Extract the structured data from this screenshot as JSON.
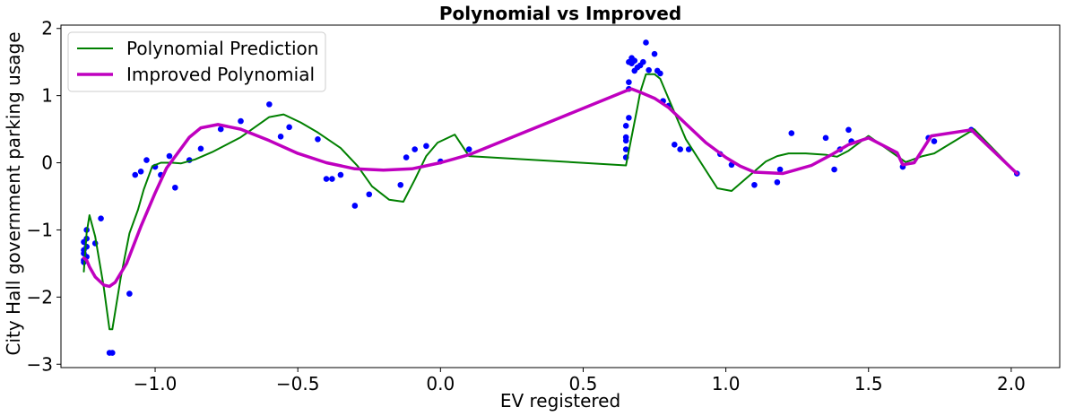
{
  "chart_data": {
    "type": "line",
    "title": "Polynomial vs Improved",
    "xlabel": "EV registered",
    "ylabel": "City Hall government parking usage",
    "xlim": [
      -1.33,
      2.17
    ],
    "ylim": [
      -3.05,
      2.05
    ],
    "xticks": [
      -1.0,
      -0.5,
      0.0,
      0.5,
      1.0,
      1.5,
      2.0
    ],
    "xtick_labels": [
      "−1.0",
      "−0.5",
      "0.0",
      "0.5",
      "1.0",
      "1.5",
      "2.0"
    ],
    "yticks": [
      -3,
      -2,
      -1,
      0,
      1,
      2
    ],
    "ytick_labels": [
      "−3",
      "−2",
      "−1",
      "0",
      "1",
      "2"
    ],
    "grid": false,
    "legend_position": "top-left",
    "colors": {
      "poly": "#008000",
      "improved": "#bf00bf",
      "points": "#0000ff"
    },
    "legend": [
      {
        "label": "Polynomial Prediction",
        "color": "#008000",
        "width": 2
      },
      {
        "label": "Improved Polynomial",
        "color": "#bf00bf",
        "width": 3.5
      }
    ],
    "scatter": {
      "x": [
        -1.25,
        -1.25,
        -1.25,
        -1.25,
        -1.25,
        -1.24,
        -1.24,
        -1.24,
        -1.24,
        -1.21,
        -1.19,
        -1.16,
        -1.15,
        -1.09,
        -1.07,
        -1.05,
        -1.03,
        -1.0,
        -0.98,
        -0.95,
        -0.93,
        -0.88,
        -0.84,
        -0.77,
        -0.7,
        -0.6,
        -0.56,
        -0.53,
        -0.43,
        -0.4,
        -0.38,
        -0.35,
        -0.3,
        -0.25,
        -0.14,
        -0.12,
        -0.09,
        -0.05,
        0.0,
        0.1,
        0.65,
        0.65,
        0.65,
        0.65,
        0.65,
        0.66,
        0.66,
        0.66,
        0.66,
        0.67,
        0.67,
        0.68,
        0.68,
        0.69,
        0.7,
        0.71,
        0.72,
        0.73,
        0.75,
        0.76,
        0.77,
        0.78,
        0.8,
        0.82,
        0.84,
        0.87,
        0.98,
        1.02,
        1.1,
        1.18,
        1.19,
        1.23,
        1.35,
        1.38,
        1.4,
        1.43,
        1.44,
        1.62,
        1.71,
        1.73,
        1.86,
        2.02
      ],
      "y": [
        -1.3,
        -1.35,
        -1.45,
        -1.48,
        -1.18,
        -1.13,
        -1.25,
        -1.0,
        -1.4,
        -1.2,
        -0.83,
        -2.83,
        -2.83,
        -1.95,
        -0.18,
        -0.13,
        0.04,
        -0.06,
        -0.18,
        0.1,
        -0.37,
        0.04,
        0.21,
        0.5,
        0.62,
        0.87,
        0.39,
        0.53,
        0.35,
        -0.24,
        -0.24,
        -0.18,
        -0.64,
        -0.47,
        -0.33,
        0.08,
        0.2,
        0.25,
        0.02,
        0.2,
        0.08,
        0.2,
        0.33,
        0.38,
        0.55,
        0.67,
        1.1,
        1.2,
        1.5,
        1.56,
        1.48,
        1.52,
        1.37,
        1.42,
        1.45,
        1.5,
        1.79,
        1.38,
        1.62,
        1.37,
        1.33,
        0.92,
        0.85,
        0.27,
        0.2,
        0.2,
        0.13,
        -0.03,
        -0.33,
        -0.29,
        -0.1,
        0.44,
        0.37,
        -0.1,
        0.2,
        0.49,
        0.32,
        -0.06,
        0.37,
        0.32,
        0.49,
        -0.16
      ]
    },
    "series": [
      {
        "name": "Polynomial Prediction",
        "x": [
          -1.25,
          -1.24,
          -1.23,
          -1.21,
          -1.18,
          -1.16,
          -1.15,
          -1.12,
          -1.09,
          -1.06,
          -1.04,
          -1.01,
          -0.98,
          -0.94,
          -0.91,
          -0.86,
          -0.8,
          -0.7,
          -0.6,
          -0.55,
          -0.49,
          -0.43,
          -0.35,
          -0.29,
          -0.24,
          -0.18,
          -0.13,
          -0.09,
          -0.05,
          -0.01,
          0.05,
          0.1,
          0.65,
          0.69,
          0.7,
          0.72,
          0.75,
          0.77,
          0.8,
          0.86,
          0.97,
          1.02,
          1.08,
          1.14,
          1.18,
          1.22,
          1.28,
          1.35,
          1.39,
          1.43,
          1.5,
          1.6,
          1.63,
          1.69,
          1.73,
          1.87,
          2.02
        ],
        "y": [
          -1.62,
          -1.05,
          -0.78,
          -1.1,
          -1.85,
          -2.48,
          -2.48,
          -1.7,
          -1.05,
          -0.7,
          -0.4,
          -0.05,
          0.0,
          0.0,
          -0.01,
          0.05,
          0.16,
          0.38,
          0.68,
          0.72,
          0.6,
          0.45,
          0.22,
          -0.05,
          -0.35,
          -0.55,
          -0.58,
          -0.25,
          0.1,
          0.3,
          0.42,
          0.1,
          -0.04,
          0.82,
          1.05,
          1.32,
          1.32,
          1.25,
          0.95,
          0.35,
          -0.38,
          -0.42,
          -0.2,
          0.02,
          0.1,
          0.14,
          0.14,
          0.12,
          0.09,
          0.18,
          0.4,
          0.1,
          0.01,
          0.1,
          0.14,
          0.5,
          -0.16
        ]
      },
      {
        "name": "Improved Polynomial",
        "x": [
          -1.25,
          -1.24,
          -1.23,
          -1.21,
          -1.18,
          -1.16,
          -1.14,
          -1.1,
          -1.05,
          -1.0,
          -0.96,
          -0.92,
          -0.88,
          -0.84,
          -0.78,
          -0.7,
          -0.6,
          -0.5,
          -0.4,
          -0.3,
          -0.2,
          -0.1,
          0.0,
          0.1,
          0.65,
          0.67,
          0.7,
          0.75,
          0.8,
          0.86,
          0.93,
          1.0,
          1.05,
          1.1,
          1.2,
          1.3,
          1.37,
          1.43,
          1.5,
          1.6,
          1.62,
          1.66,
          1.72,
          1.86,
          2.02
        ],
        "y": [
          -1.42,
          -1.45,
          -1.55,
          -1.7,
          -1.82,
          -1.84,
          -1.78,
          -1.5,
          -0.95,
          -0.45,
          -0.08,
          0.15,
          0.38,
          0.52,
          0.57,
          0.5,
          0.33,
          0.14,
          0.0,
          -0.09,
          -0.11,
          -0.09,
          0.0,
          0.12,
          1.07,
          1.1,
          1.05,
          0.96,
          0.82,
          0.58,
          0.3,
          0.08,
          -0.05,
          -0.14,
          -0.16,
          -0.04,
          0.12,
          0.27,
          0.37,
          0.15,
          -0.03,
          0.0,
          0.4,
          0.49,
          -0.16
        ]
      }
    ]
  }
}
